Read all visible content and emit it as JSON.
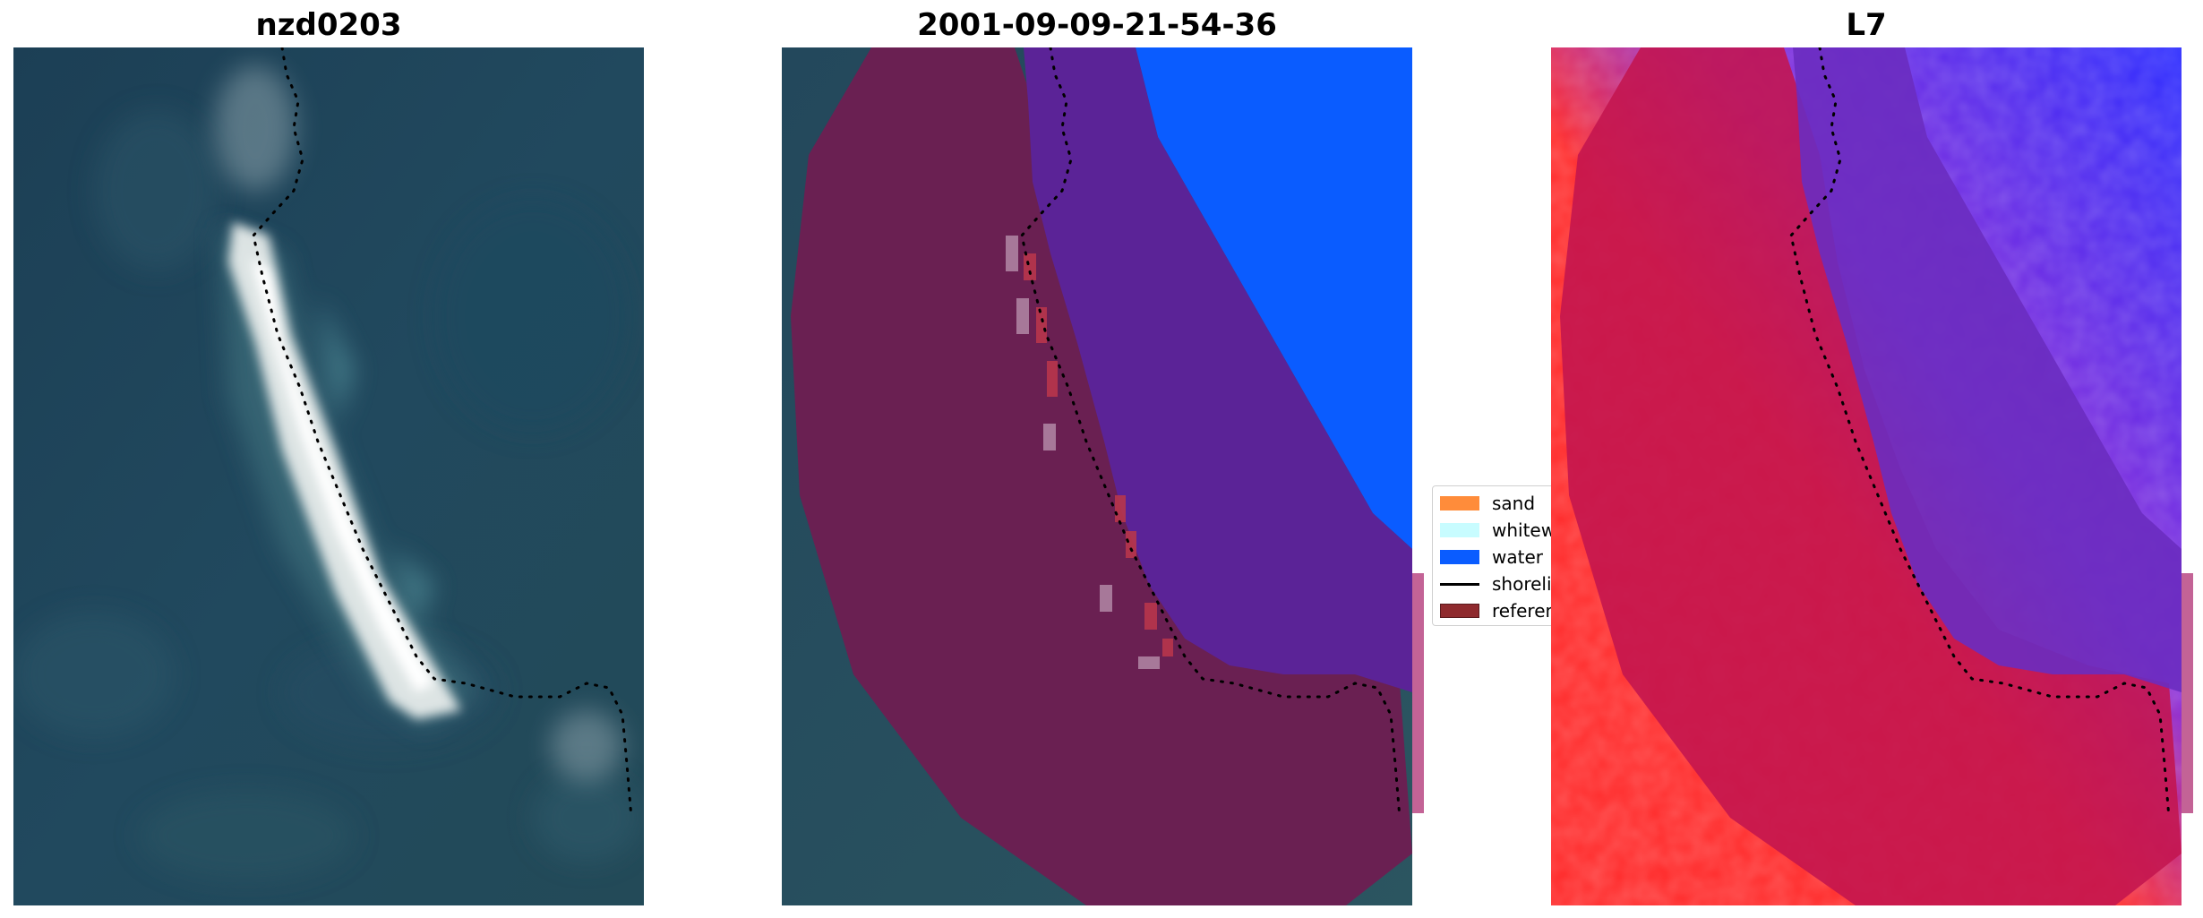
{
  "panels": [
    {
      "title": "nzd0203"
    },
    {
      "title": "2001-09-09-21-54-36"
    },
    {
      "title": "L7"
    }
  ],
  "legend": {
    "items": [
      {
        "label": "sand",
        "color": "#ff8c3a",
        "kind": "patch"
      },
      {
        "label": "whitewater",
        "color": "#c8fcff",
        "kind": "patch"
      },
      {
        "label": "water",
        "color": "#0a5cff",
        "kind": "patch"
      },
      {
        "label": "shoreline",
        "color": "#000000",
        "kind": "line"
      },
      {
        "label": "reference",
        "color": "#8f2a2e",
        "kind": "patch"
      }
    ]
  },
  "colors": {
    "ocean_rgb": "#23485e",
    "beach": "#f2f4f4",
    "land_class": "#6c1f52",
    "water_buffer_class": "#5b2397",
    "water_class": "#0a5cff",
    "index_red": "#ff2b2b",
    "index_blue": "#2b2bff",
    "index_band_red": "#c3154e",
    "index_band_blue": "#6a2cc0",
    "reference_strip": "#c36396"
  }
}
